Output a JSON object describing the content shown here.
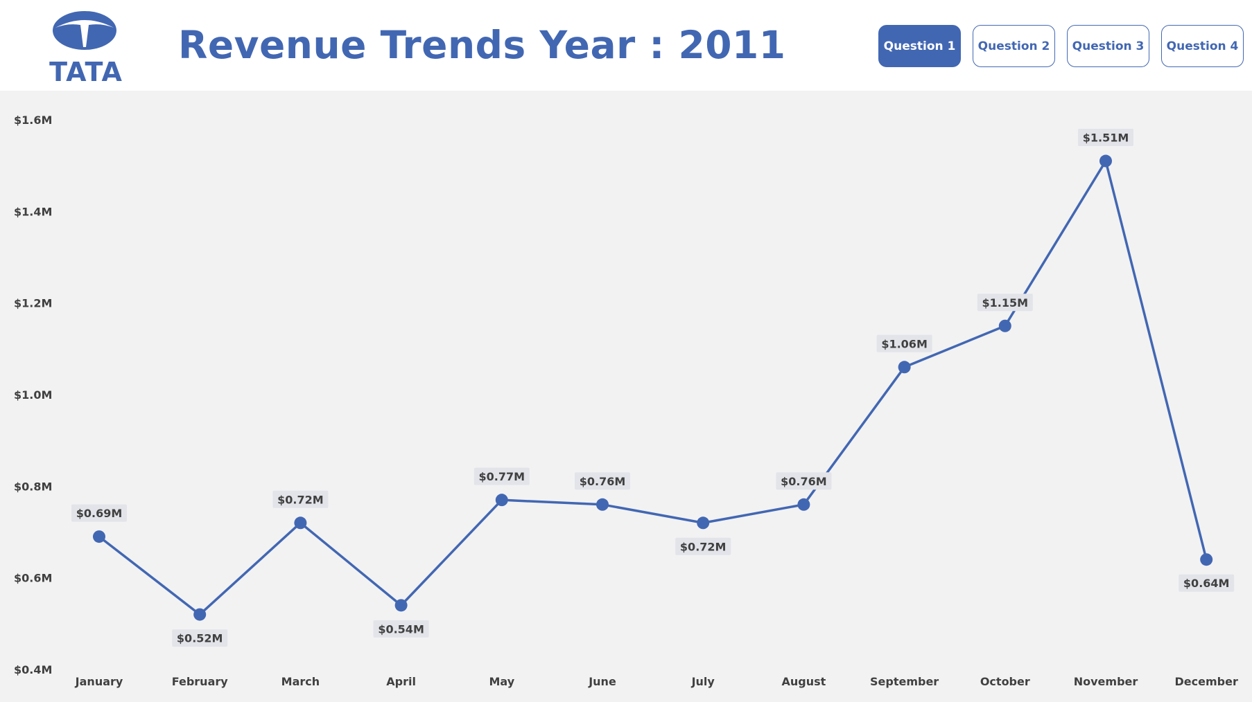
{
  "header": {
    "title": "Revenue Trends Year : 2011",
    "logo_text": "TATA",
    "buttons": [
      {
        "label": "Question 1",
        "active": true
      },
      {
        "label": "Question 2",
        "active": false
      },
      {
        "label": "Question 3",
        "active": false
      },
      {
        "label": "Question 4",
        "active": false
      }
    ]
  },
  "colors": {
    "accent": "#4267b2",
    "background": "#f2f2f3",
    "label_bg": "#e2e4e9",
    "label_text": "#404040"
  },
  "chart_data": {
    "type": "line",
    "categories": [
      "January",
      "February",
      "March",
      "April",
      "May",
      "June",
      "July",
      "August",
      "September",
      "October",
      "November",
      "December"
    ],
    "series": [
      {
        "values": [
          0.69,
          0.52,
          0.72,
          0.54,
          0.77,
          0.76,
          0.72,
          0.76,
          1.06,
          1.15,
          1.51,
          0.64
        ]
      }
    ],
    "data_labels": [
      "$0.69M",
      "$0.52M",
      "$0.72M",
      "$0.54M",
      "$0.77M",
      "$0.76M",
      "$0.72M",
      "$0.76M",
      "$1.06M",
      "$1.15M",
      "$1.51M",
      "$0.64M"
    ],
    "label_positions": [
      "above",
      "below",
      "above",
      "below",
      "above",
      "above",
      "below",
      "above",
      "above",
      "above",
      "above",
      "below"
    ],
    "y_ticks": [
      0.4,
      0.6,
      0.8,
      1.0,
      1.2,
      1.4,
      1.6
    ],
    "y_tick_labels": [
      "$0.4M",
      "$0.6M",
      "$0.8M",
      "$1.0M",
      "$1.2M",
      "$1.4M",
      "$1.6M"
    ],
    "ylim": [
      0.4,
      1.6
    ],
    "grid": false,
    "legend": "none"
  }
}
